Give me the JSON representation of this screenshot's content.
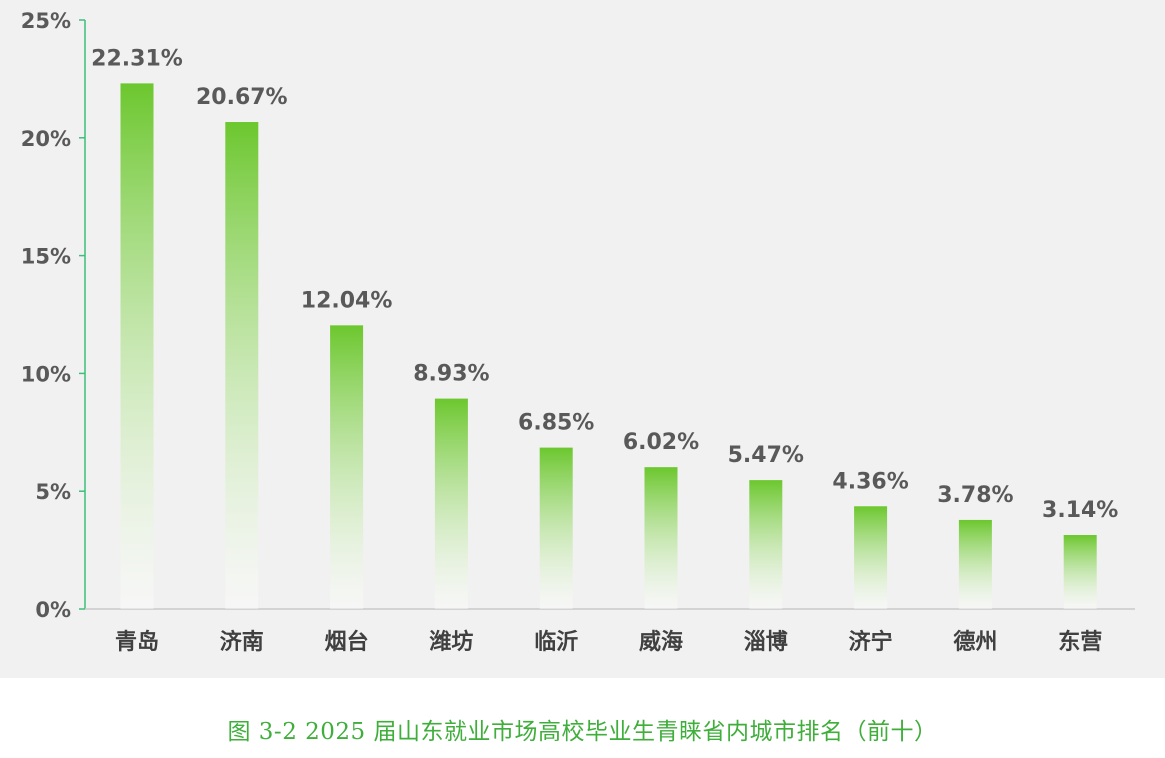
{
  "chart_data": {
    "type": "bar",
    "categories": [
      "青岛",
      "济南",
      "烟台",
      "潍坊",
      "临沂",
      "威海",
      "淄博",
      "济宁",
      "德州",
      "东营"
    ],
    "values": [
      22.31,
      20.67,
      12.04,
      8.93,
      6.85,
      6.02,
      5.47,
      4.36,
      3.78,
      3.14
    ],
    "value_labels": [
      "22.31%",
      "20.67%",
      "12.04%",
      "8.93%",
      "6.85%",
      "6.02%",
      "5.47%",
      "4.36%",
      "3.78%",
      "3.14%"
    ],
    "yticks": [
      0,
      5,
      10,
      15,
      20,
      25
    ],
    "ytick_labels": [
      "0%",
      "5%",
      "10%",
      "15%",
      "20%",
      "25%"
    ],
    "ylim": [
      0,
      25
    ],
    "grid": false,
    "title": "",
    "xlabel": "",
    "ylabel": "",
    "colors": {
      "bar_top": "#6cc72e",
      "bar_bottom": "#ffffff",
      "axis": "#3cbf7a",
      "panel_background": "#f1f1f1"
    }
  },
  "caption": "图 3-2 2025 届山东就业市场高校毕业生青睐省内城市排名（前十）"
}
